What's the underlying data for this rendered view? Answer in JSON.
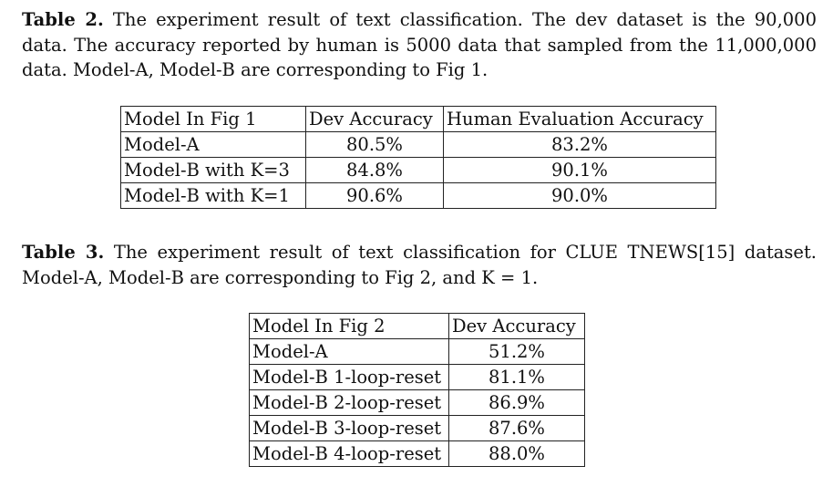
{
  "table2": {
    "caption_label": "Table 2.",
    "caption_text": "The experiment result of text classification. The dev dataset is the 90,000 data. The accuracy reported by human is 5000 data that sampled from the 11,000,000 data. Model-A, Model-B are corresponding to Fig 1.",
    "headers": [
      "Model In Fig 1",
      "Dev Accuracy",
      "Human Evaluation Accuracy"
    ],
    "rows": [
      [
        "Model-A",
        "80.5%",
        "83.2%"
      ],
      [
        "Model-B with K=3",
        "84.8%",
        "90.1%"
      ],
      [
        "Model-B with K=1",
        "90.6%",
        "90.0%"
      ]
    ]
  },
  "table3": {
    "caption_label": "Table 3.",
    "caption_text": "The experiment result of text classification for CLUE TNEWS[15] dataset. Model-A, Model-B are corresponding to Fig 2, and K = 1.",
    "headers": [
      "Model In Fig 2",
      "Dev Accuracy"
    ],
    "rows": [
      [
        "Model-A",
        "51.2%"
      ],
      [
        "Model-B 1-loop-reset",
        "81.1%"
      ],
      [
        "Model-B 2-loop-reset",
        "86.9%"
      ],
      [
        "Model-B 3-loop-reset",
        "87.6%"
      ],
      [
        "Model-B 4-loop-reset",
        "88.0%"
      ]
    ]
  }
}
